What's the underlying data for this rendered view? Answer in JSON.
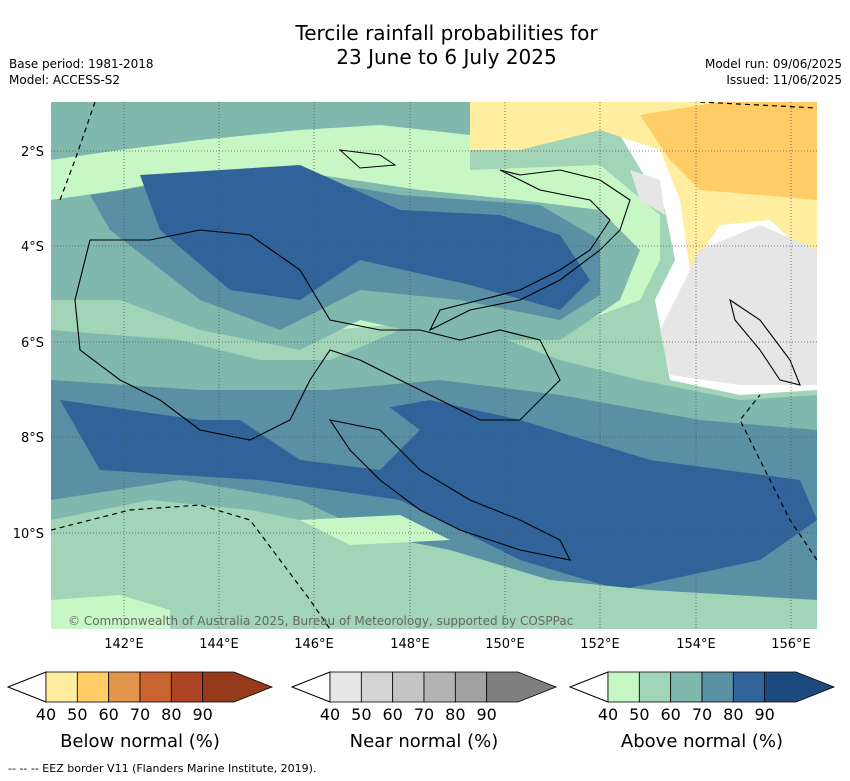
{
  "title_line1": "Tercile rainfall probabilities for",
  "title_line2": "23 June to 6 July 2025",
  "base_period": "Base period: 1981-2018",
  "model": "Model: ACCESS-S2",
  "model_run": "Model run: 09/06/2025",
  "issued": "Issued: 11/06/2025",
  "lat_labels": [
    "2°S",
    "4°S",
    "6°S",
    "8°S",
    "10°S"
  ],
  "lon_labels": [
    "142°E",
    "144°E",
    "146°E",
    "148°E",
    "150°E",
    "152°E",
    "154°E",
    "156°E"
  ],
  "copyright": "© Commonwealth of Australia 2025, Bureau of Meteorology, supported by COSPPac",
  "colorbars": [
    {
      "label": "Below normal (%)",
      "ticks": [
        "40",
        "50",
        "60",
        "70",
        "80",
        "90"
      ],
      "colors": [
        "#ffeea0",
        "#ffcc66",
        "#e0964a",
        "#c96431",
        "#ad4524",
        "#963a1c"
      ]
    },
    {
      "label": "Near normal (%)",
      "ticks": [
        "40",
        "50",
        "60",
        "70",
        "80",
        "90"
      ],
      "colors": [
        "#e6e6e6",
        "#d4d4d4",
        "#c4c4c4",
        "#b3b3b3",
        "#a0a0a0",
        "#7f7f7f"
      ]
    },
    {
      "label": "Above normal (%)",
      "ticks": [
        "40",
        "50",
        "60",
        "70",
        "80",
        "90"
      ],
      "colors": [
        "#c8f7c6",
        "#a2d5b8",
        "#80b8ae",
        "#5a90a3",
        "#2f6399",
        "#1c4a7f"
      ]
    }
  ],
  "footer": "--  --  -- EEZ border V11 (Flanders Marine Institute, 2019)."
}
